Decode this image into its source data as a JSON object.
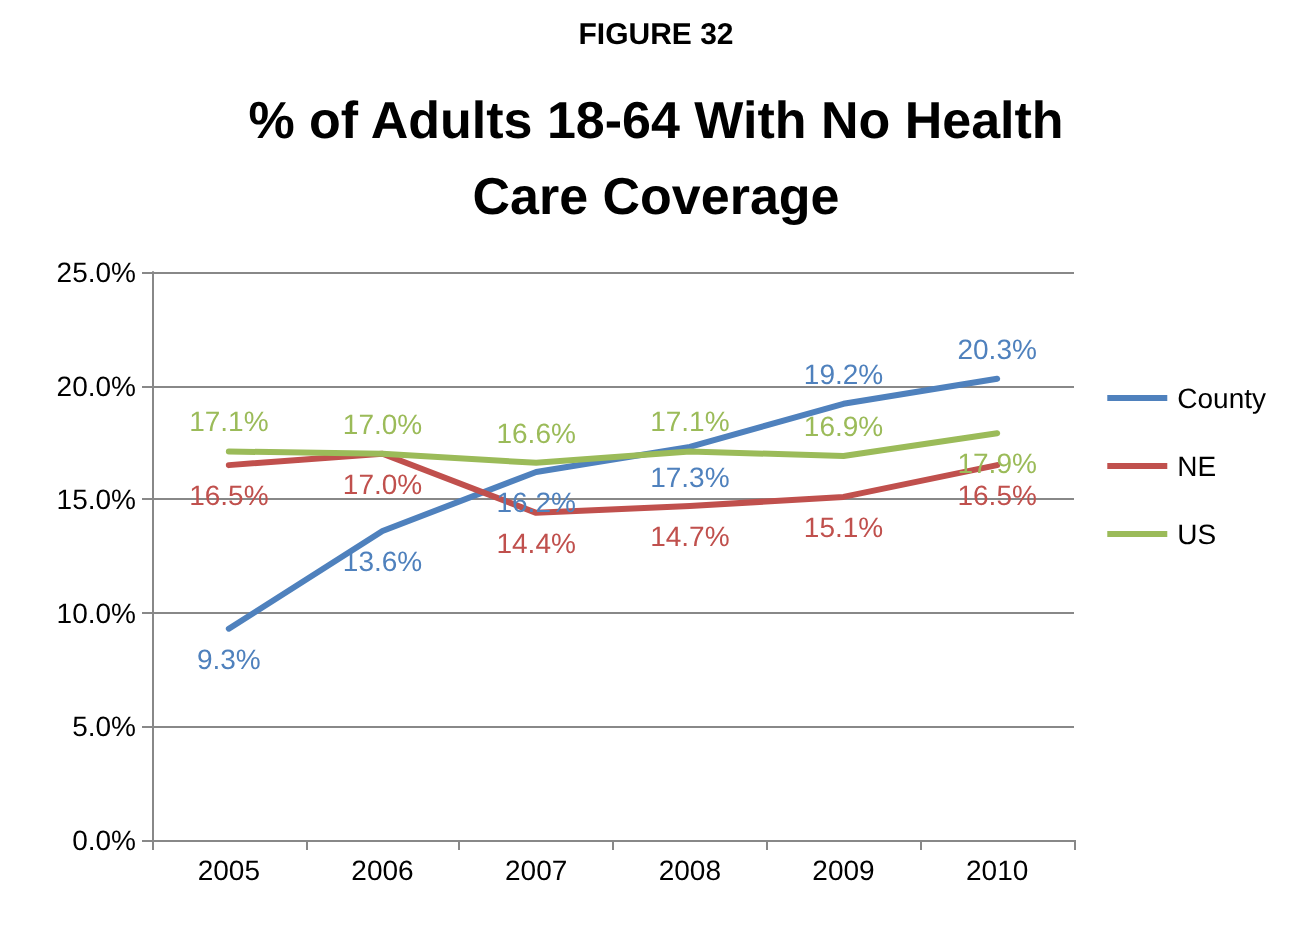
{
  "chart_data": {
    "type": "line",
    "title": "% of Adults 18-64 With No Health\nCare Coverage",
    "annotations": [
      "FIGURE 32"
    ],
    "categories": [
      "2005",
      "2006",
      "2007",
      "2008",
      "2009",
      "2010"
    ],
    "series": [
      {
        "name": "County",
        "color": "#4f81bd",
        "values": [
          9.3,
          13.6,
          16.2,
          17.3,
          19.2,
          20.3
        ],
        "value_labels": [
          "9.3%",
          "13.6%",
          "16.2%",
          "17.3%",
          "19.2%",
          "20.3%"
        ]
      },
      {
        "name": "NE",
        "color": "#c0504d",
        "values": [
          16.5,
          17.0,
          14.4,
          14.7,
          15.1,
          16.5
        ],
        "value_labels": [
          "16.5%",
          "17.0%",
          "14.4%",
          "14.7%",
          "15.1%",
          "16.5%"
        ]
      },
      {
        "name": "US",
        "color": "#9bbb59",
        "values": [
          17.1,
          17.0,
          16.6,
          17.1,
          16.9,
          17.9
        ],
        "value_labels": [
          "17.1%",
          "17.0%",
          "16.6%",
          "17.1%",
          "16.9%",
          "17.9%"
        ]
      }
    ],
    "ylim": [
      0,
      25
    ],
    "yticks": [
      {
        "value": 0,
        "label": "0.0%"
      },
      {
        "value": 5,
        "label": "5.0%"
      },
      {
        "value": 10,
        "label": "10.0%"
      },
      {
        "value": 15,
        "label": "15.0%"
      },
      {
        "value": 20,
        "label": "20.0%"
      },
      {
        "value": 25,
        "label": "25.0%"
      }
    ],
    "grid": "y",
    "legend": "right",
    "marker": "none",
    "line_style": "solid"
  }
}
